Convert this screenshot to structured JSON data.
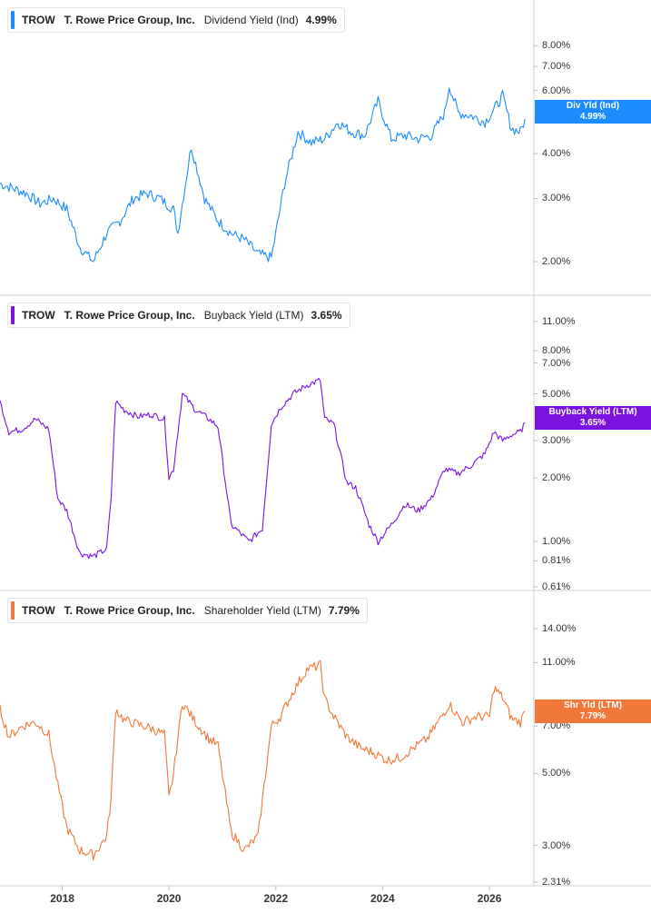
{
  "chart_data": [
    {
      "type": "line",
      "ticker": "TROW",
      "company": "T. Rowe Price Group, Inc.",
      "metric": "Dividend Yield (Ind)",
      "latest": "4.99%",
      "tag_label": "Div Yld (Ind)",
      "tag_value": "4.99%",
      "color": "#1a8cff",
      "scale": "log",
      "ylim": [
        1.65,
        10.0
      ],
      "yticks": [
        {
          "v": 8,
          "l": "8.00%"
        },
        {
          "v": 7,
          "l": "7.00%"
        },
        {
          "v": 6,
          "l": "6.00%"
        },
        {
          "v": 5,
          "l": "5.00%"
        },
        {
          "v": 4,
          "l": "4.00%"
        },
        {
          "v": 3,
          "l": "3.00%"
        },
        {
          "v": 2,
          "l": "2.00%"
        }
      ],
      "series": [
        {
          "x": [
            "2016-11",
            "2017-02",
            "2017-05",
            "2017-08",
            "2017-11",
            "2018-02",
            "2018-05",
            "2018-08",
            "2018-11",
            "2019-02",
            "2019-05",
            "2019-08",
            "2019-11",
            "2020-02",
            "2020-03",
            "2020-06",
            "2020-09",
            "2020-12",
            "2021-03",
            "2021-06",
            "2021-09",
            "2021-12",
            "2022-01",
            "2022-03",
            "2022-06",
            "2022-09",
            "2022-12",
            "2023-03",
            "2023-06",
            "2023-09",
            "2023-12",
            "2024-03",
            "2024-06",
            "2024-09",
            "2024-12",
            "2025-03",
            "2025-04",
            "2025-06",
            "2025-09",
            "2025-12",
            "2026-02",
            "2026-04",
            "2026-06",
            "2026-08",
            "2026-09"
          ],
          "values": [
            3.3,
            3.2,
            3.1,
            2.9,
            3.0,
            2.8,
            2.2,
            2.0,
            2.4,
            2.6,
            3.0,
            3.1,
            3.0,
            2.8,
            2.4,
            4.2,
            3.0,
            2.6,
            2.4,
            2.3,
            2.1,
            2.05,
            2.4,
            3.3,
            4.6,
            4.3,
            4.4,
            4.9,
            4.6,
            4.5,
            5.6,
            4.4,
            4.5,
            4.4,
            4.5,
            5.2,
            6.2,
            5.2,
            5.1,
            4.9,
            5.3,
            5.8,
            4.7,
            4.6,
            4.99
          ]
        }
      ]
    },
    {
      "type": "line",
      "ticker": "TROW",
      "company": "T. Rowe Price Group, Inc.",
      "metric": "Buyback Yield (LTM)",
      "latest": "3.65%",
      "tag_label": "Buyback Yield (LTM)",
      "tag_value": "3.65%",
      "color": "#7b13e0",
      "scale": "log",
      "ylim": [
        0.61,
        13.0
      ],
      "yticks": [
        {
          "v": 11,
          "l": "11.00%"
        },
        {
          "v": 8,
          "l": "8.00%"
        },
        {
          "v": 7,
          "l": "7.00%"
        },
        {
          "v": 5,
          "l": "5.00%"
        },
        {
          "v": 3,
          "l": "3.00%"
        },
        {
          "v": 2,
          "l": "2.00%"
        },
        {
          "v": 1,
          "l": "1.00%"
        },
        {
          "v": 0.81,
          "l": "0.81%"
        },
        {
          "v": 0.61,
          "l": "0.61%"
        }
      ],
      "series": [
        {
          "x": [
            "2016-11",
            "2017-01",
            "2017-04",
            "2017-07",
            "2017-10",
            "2017-12",
            "2018-02",
            "2018-05",
            "2018-08",
            "2018-11",
            "2018-12",
            "2019-01",
            "2019-03",
            "2019-06",
            "2019-09",
            "2019-12",
            "2020-01",
            "2020-02",
            "2020-04",
            "2020-07",
            "2020-10",
            "2020-12",
            "2021-03",
            "2021-04",
            "2021-07",
            "2021-10",
            "2021-12",
            "2022-02",
            "2022-05",
            "2022-08",
            "2022-11",
            "2022-12",
            "2023-02",
            "2023-05",
            "2023-07",
            "2023-10",
            "2023-12",
            "2024-03",
            "2024-06",
            "2024-09",
            "2024-12",
            "2025-03",
            "2025-06",
            "2025-09",
            "2025-12",
            "2026-02",
            "2026-04",
            "2026-06",
            "2026-08",
            "2026-09"
          ],
          "values": [
            4.6,
            3.3,
            3.4,
            3.8,
            3.4,
            1.6,
            1.4,
            0.88,
            0.85,
            0.92,
            1.6,
            4.6,
            4.2,
            3.9,
            4.0,
            3.8,
            2.0,
            2.2,
            5.0,
            4.2,
            3.8,
            3.5,
            1.2,
            1.15,
            1.0,
            1.15,
            3.6,
            4.3,
            5.0,
            5.5,
            5.8,
            3.8,
            3.6,
            1.9,
            1.8,
            1.2,
            1.0,
            1.2,
            1.5,
            1.4,
            1.6,
            2.2,
            2.1,
            2.3,
            2.6,
            3.3,
            3.0,
            3.2,
            3.3,
            3.65
          ]
        }
      ]
    },
    {
      "type": "line",
      "ticker": "TROW",
      "company": "T. Rowe Price Group, Inc.",
      "metric": "Shareholder Yield (LTM)",
      "latest": "7.79%",
      "tag_label": "Shr Yld (LTM)",
      "tag_value": "7.79%",
      "color": "#f2783a",
      "scale": "log",
      "ylim": [
        2.31,
        17.0
      ],
      "yticks": [
        {
          "v": 14,
          "l": "14.00%"
        },
        {
          "v": 11,
          "l": "11.00%"
        },
        {
          "v": 7,
          "l": "7.00%"
        },
        {
          "v": 5,
          "l": "5.00%"
        },
        {
          "v": 3,
          "l": "3.00%"
        },
        {
          "v": 2.31,
          "l": "2.31%"
        }
      ],
      "series": [
        {
          "x": [
            "2016-11",
            "2017-01",
            "2017-04",
            "2017-07",
            "2017-10",
            "2017-12",
            "2018-02",
            "2018-05",
            "2018-08",
            "2018-11",
            "2018-12",
            "2019-01",
            "2019-03",
            "2019-06",
            "2019-09",
            "2019-12",
            "2020-01",
            "2020-02",
            "2020-04",
            "2020-07",
            "2020-10",
            "2020-12",
            "2021-03",
            "2021-06",
            "2021-09",
            "2021-12",
            "2022-02",
            "2022-05",
            "2022-08",
            "2022-11",
            "2022-12",
            "2023-02",
            "2023-05",
            "2023-08",
            "2023-11",
            "2024-02",
            "2024-05",
            "2024-08",
            "2024-11",
            "2025-02",
            "2025-04",
            "2025-07",
            "2025-10",
            "2026-01",
            "2026-02",
            "2026-04",
            "2026-06",
            "2026-08",
            "2026-09"
          ],
          "values": [
            7.9,
            6.5,
            7.0,
            7.2,
            6.6,
            4.6,
            3.4,
            2.9,
            2.8,
            3.2,
            4.2,
            7.9,
            7.3,
            7.1,
            6.9,
            6.6,
            4.2,
            5.0,
            8.3,
            7.2,
            6.4,
            6.1,
            3.3,
            2.9,
            3.2,
            7.0,
            7.5,
            9.0,
            10.5,
            10.8,
            8.5,
            7.5,
            6.5,
            6.0,
            5.8,
            5.5,
            5.6,
            6.0,
            6.4,
            7.4,
            8.2,
            7.2,
            7.5,
            7.5,
            9.2,
            8.6,
            7.4,
            7.2,
            7.79
          ]
        }
      ]
    }
  ],
  "x_axis_labels": [
    "2018",
    "2020",
    "2022",
    "2024",
    "2026"
  ]
}
